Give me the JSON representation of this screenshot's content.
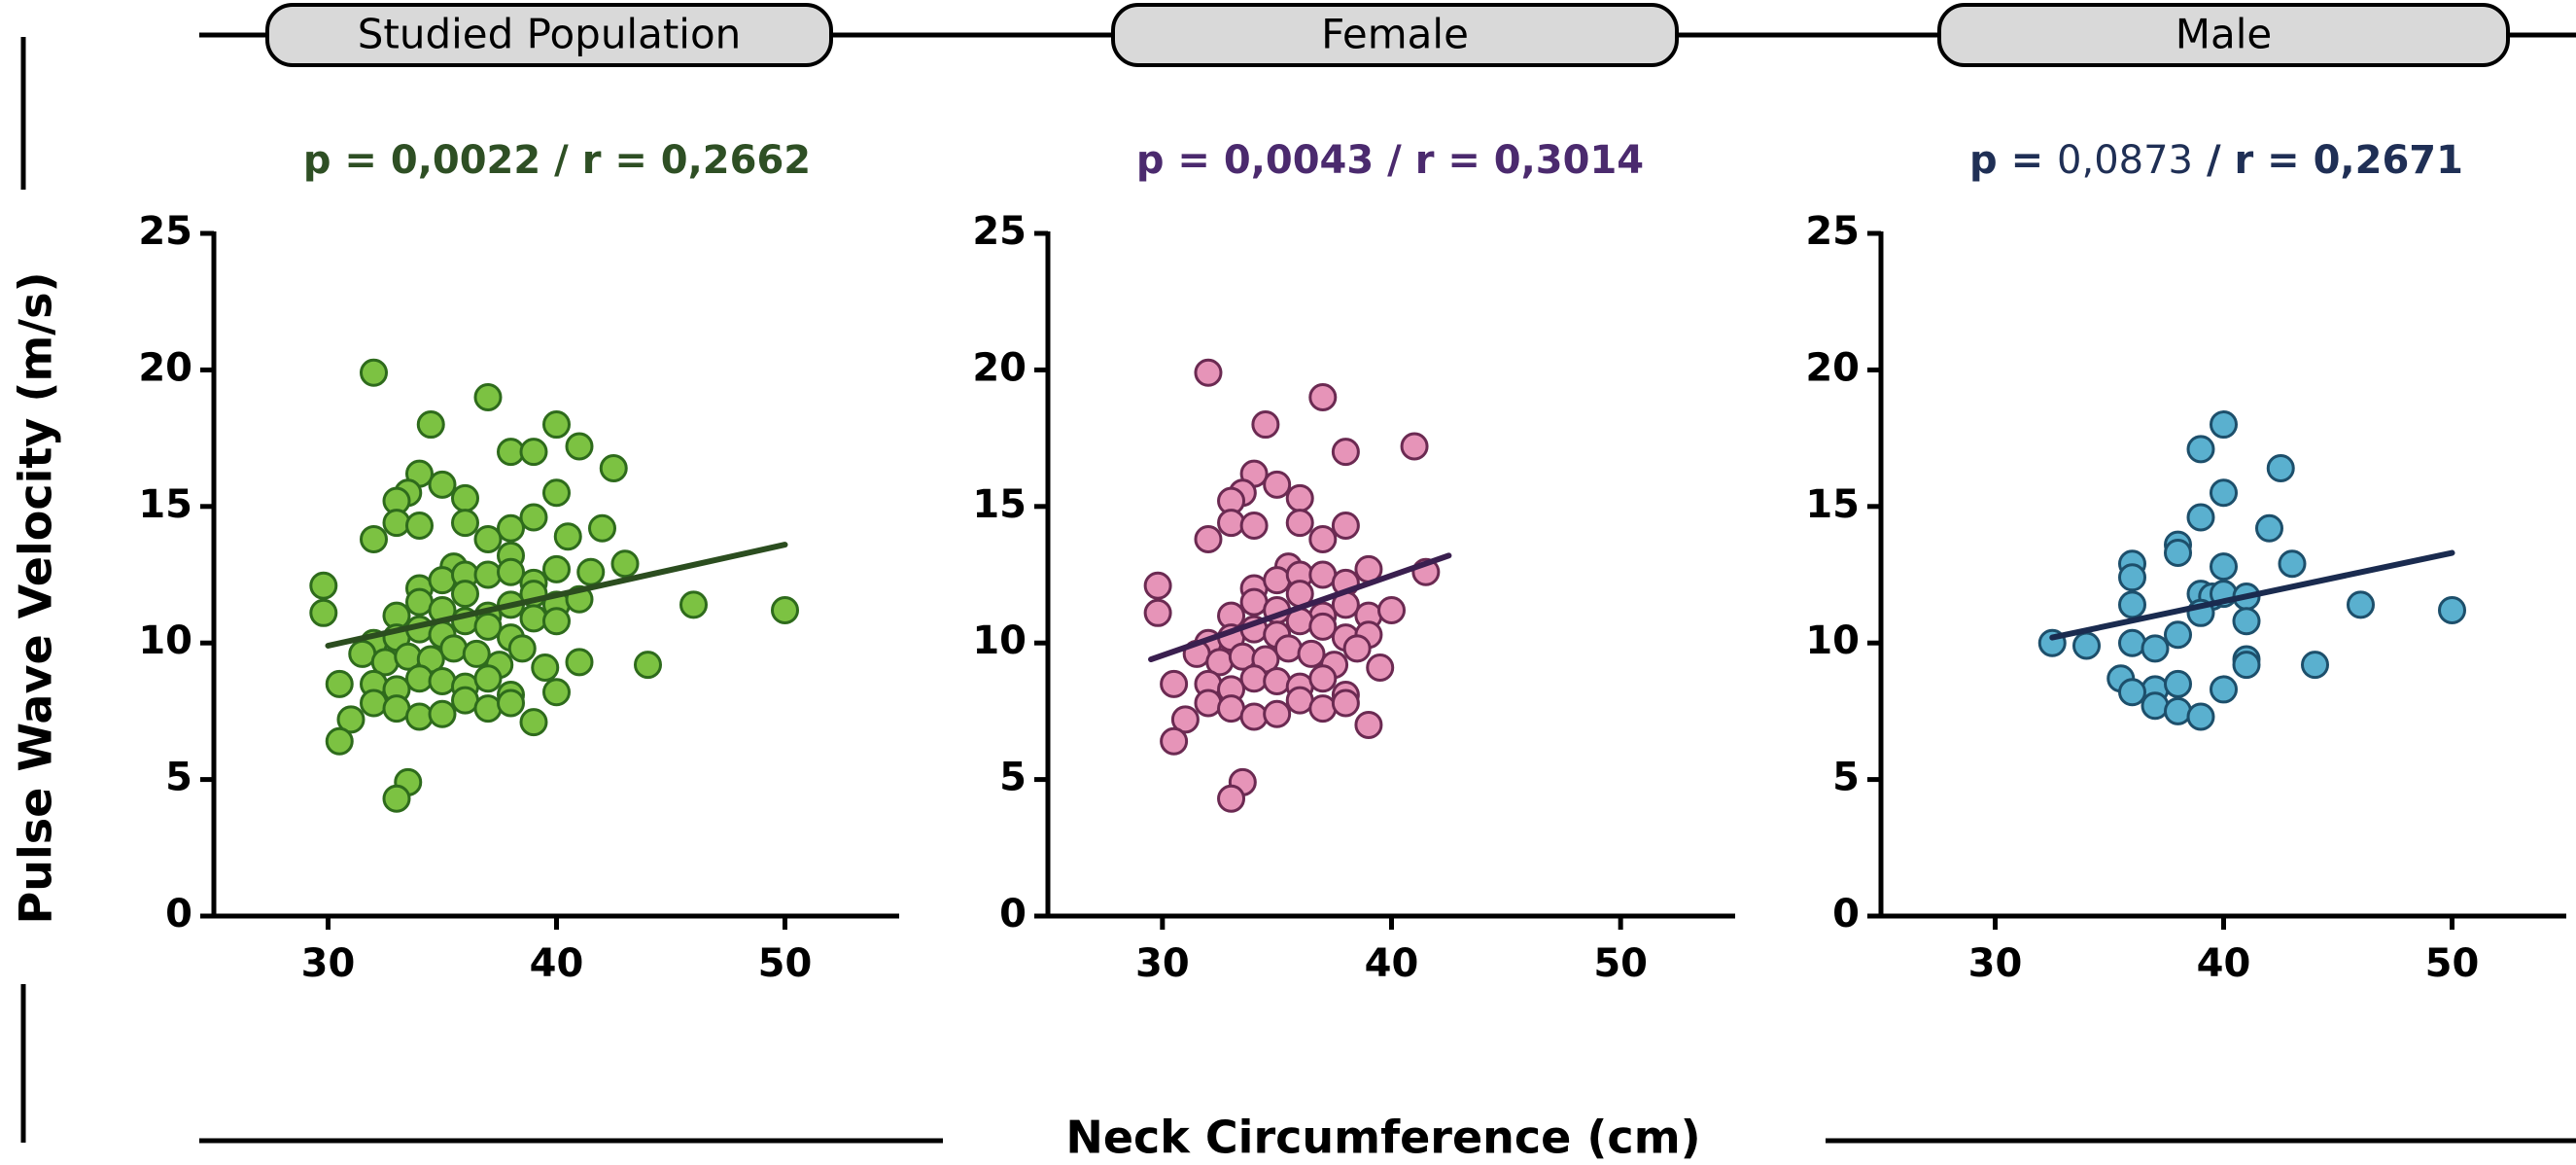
{
  "figure": {
    "ylabel": "Pulse Wave Velocity (m/s)",
    "xlabel": "Neck Circumference (cm)"
  },
  "chart_data": [
    {
      "type": "scatter",
      "title": "Studied Population",
      "stats": {
        "p_label": "p = ",
        "p_value": "0,0022",
        "p_bold": true,
        "separator": " / ",
        "r_label": "r = ",
        "r_value": "0,2662"
      },
      "colors": {
        "point_fill": "#7cc242",
        "point_stroke": "#2e6b1c",
        "line": "#2b4d1f",
        "stat_text": "#2e4f24"
      },
      "xlim": [
        25,
        55
      ],
      "ylim": [
        0,
        25
      ],
      "x_ticks": [
        30,
        40,
        50
      ],
      "y_ticks": [
        0,
        5,
        10,
        15,
        20,
        25
      ],
      "grid": false,
      "trend_line": {
        "x": [
          30,
          50
        ],
        "y": [
          9.9,
          13.6
        ]
      },
      "points": [
        [
          32,
          19.9
        ],
        [
          37,
          19.0
        ],
        [
          34.5,
          18.0
        ],
        [
          40,
          18.0
        ],
        [
          41,
          17.2
        ],
        [
          38,
          17.0
        ],
        [
          39,
          17.0
        ],
        [
          42.5,
          16.4
        ],
        [
          34,
          16.2
        ],
        [
          33.5,
          15.5
        ],
        [
          35,
          15.8
        ],
        [
          36,
          15.3
        ],
        [
          33,
          15.2
        ],
        [
          40,
          15.5
        ],
        [
          33,
          14.4
        ],
        [
          34,
          14.3
        ],
        [
          36,
          14.4
        ],
        [
          38,
          14.2
        ],
        [
          39,
          14.6
        ],
        [
          42,
          14.2
        ],
        [
          32,
          13.8
        ],
        [
          37,
          13.8
        ],
        [
          40.5,
          13.9
        ],
        [
          38,
          13.2
        ],
        [
          35.5,
          12.8
        ],
        [
          43,
          12.9
        ],
        [
          29.8,
          12.1
        ],
        [
          34,
          12.0
        ],
        [
          35,
          12.3
        ],
        [
          36,
          12.5
        ],
        [
          37,
          12.5
        ],
        [
          38,
          12.6
        ],
        [
          39,
          12.2
        ],
        [
          40,
          12.7
        ],
        [
          41.5,
          12.6
        ],
        [
          33,
          11.0
        ],
        [
          34,
          11.5
        ],
        [
          35,
          11.2
        ],
        [
          36,
          11.8
        ],
        [
          37,
          11.0
        ],
        [
          38,
          11.4
        ],
        [
          39,
          11.8
        ],
        [
          40,
          11.4
        ],
        [
          41,
          11.6
        ],
        [
          46,
          11.4
        ],
        [
          50,
          11.2
        ],
        [
          29.8,
          11.1
        ],
        [
          32,
          10.0
        ],
        [
          33,
          10.2
        ],
        [
          34,
          10.5
        ],
        [
          35,
          10.3
        ],
        [
          36,
          10.8
        ],
        [
          37,
          10.6
        ],
        [
          38,
          10.2
        ],
        [
          39,
          10.9
        ],
        [
          40,
          10.8
        ],
        [
          31.5,
          9.6
        ],
        [
          32.5,
          9.3
        ],
        [
          33.5,
          9.5
        ],
        [
          34.5,
          9.4
        ],
        [
          35.5,
          9.8
        ],
        [
          36.5,
          9.6
        ],
        [
          37.5,
          9.2
        ],
        [
          38.5,
          9.8
        ],
        [
          39.5,
          9.1
        ],
        [
          41,
          9.3
        ],
        [
          44,
          9.2
        ],
        [
          30.5,
          8.5
        ],
        [
          32,
          8.5
        ],
        [
          33,
          8.3
        ],
        [
          34,
          8.7
        ],
        [
          35,
          8.6
        ],
        [
          36,
          8.4
        ],
        [
          37,
          8.7
        ],
        [
          38,
          8.1
        ],
        [
          40,
          8.2
        ],
        [
          31,
          7.2
        ],
        [
          32,
          7.8
        ],
        [
          33,
          7.6
        ],
        [
          34,
          7.3
        ],
        [
          35,
          7.4
        ],
        [
          36,
          7.9
        ],
        [
          37,
          7.6
        ],
        [
          38,
          7.8
        ],
        [
          39,
          7.1
        ],
        [
          30.5,
          6.4
        ],
        [
          33.5,
          4.9
        ],
        [
          33,
          4.3
        ]
      ]
    },
    {
      "type": "scatter",
      "title": "Female",
      "stats": {
        "p_label": "p = ",
        "p_value": "0,0043",
        "p_bold": true,
        "separator": " / ",
        "r_label": "r = ",
        "r_value": "0,3014"
      },
      "colors": {
        "point_fill": "#e694b8",
        "point_stroke": "#6b2a52",
        "line": "#3a1f4f",
        "stat_text": "#4b2a6e"
      },
      "xlim": [
        25,
        55
      ],
      "ylim": [
        0,
        25
      ],
      "x_ticks": [
        30,
        40,
        50
      ],
      "y_ticks": [
        0,
        5,
        10,
        15,
        20,
        25
      ],
      "grid": false,
      "trend_line": {
        "x": [
          29.5,
          42.5
        ],
        "y": [
          9.4,
          13.2
        ]
      },
      "points": [
        [
          32,
          19.9
        ],
        [
          37,
          19.0
        ],
        [
          34.5,
          18.0
        ],
        [
          41,
          17.2
        ],
        [
          38,
          17.0
        ],
        [
          34,
          16.2
        ],
        [
          33.5,
          15.5
        ],
        [
          35,
          15.8
        ],
        [
          36,
          15.3
        ],
        [
          33,
          15.2
        ],
        [
          33,
          14.4
        ],
        [
          34,
          14.3
        ],
        [
          36,
          14.4
        ],
        [
          38,
          14.3
        ],
        [
          32,
          13.8
        ],
        [
          37,
          13.8
        ],
        [
          35.5,
          12.8
        ],
        [
          39,
          12.7
        ],
        [
          41.5,
          12.6
        ],
        [
          29.8,
          12.1
        ],
        [
          34,
          12.0
        ],
        [
          35,
          12.3
        ],
        [
          36,
          12.5
        ],
        [
          37,
          12.5
        ],
        [
          38,
          12.2
        ],
        [
          29.8,
          11.1
        ],
        [
          33,
          11.0
        ],
        [
          34,
          11.5
        ],
        [
          35,
          11.2
        ],
        [
          36,
          11.8
        ],
        [
          37,
          11.0
        ],
        [
          38,
          11.4
        ],
        [
          39,
          11.0
        ],
        [
          40,
          11.2
        ],
        [
          32,
          10.0
        ],
        [
          33,
          10.2
        ],
        [
          34,
          10.5
        ],
        [
          35,
          10.3
        ],
        [
          36,
          10.8
        ],
        [
          37,
          10.6
        ],
        [
          38,
          10.2
        ],
        [
          39,
          10.3
        ],
        [
          31.5,
          9.6
        ],
        [
          32.5,
          9.3
        ],
        [
          33.5,
          9.5
        ],
        [
          34.5,
          9.4
        ],
        [
          35.5,
          9.8
        ],
        [
          36.5,
          9.6
        ],
        [
          37.5,
          9.2
        ],
        [
          38.5,
          9.8
        ],
        [
          39.5,
          9.1
        ],
        [
          30.5,
          8.5
        ],
        [
          32,
          8.5
        ],
        [
          33,
          8.3
        ],
        [
          34,
          8.7
        ],
        [
          35,
          8.6
        ],
        [
          36,
          8.4
        ],
        [
          37,
          8.7
        ],
        [
          38,
          8.1
        ],
        [
          31,
          7.2
        ],
        [
          32,
          7.8
        ],
        [
          33,
          7.6
        ],
        [
          34,
          7.3
        ],
        [
          35,
          7.4
        ],
        [
          36,
          7.9
        ],
        [
          37,
          7.6
        ],
        [
          38,
          7.8
        ],
        [
          39,
          7.0
        ],
        [
          30.5,
          6.4
        ],
        [
          33.5,
          4.9
        ],
        [
          33,
          4.3
        ]
      ]
    },
    {
      "type": "scatter",
      "title": "Male",
      "stats": {
        "p_label": "p = ",
        "p_value": "0,0873",
        "p_bold": false,
        "separator": " / ",
        "r_label": "r = ",
        "r_value": "0,2671"
      },
      "colors": {
        "point_fill": "#5ab0cf",
        "point_stroke": "#1d4f6b",
        "line": "#1a2b4f",
        "stat_text": "#1f2f55"
      },
      "xlim": [
        25,
        55
      ],
      "ylim": [
        0,
        25
      ],
      "x_ticks": [
        30,
        40,
        50
      ],
      "y_ticks": [
        0,
        5,
        10,
        15,
        20,
        25
      ],
      "grid": false,
      "trend_line": {
        "x": [
          32.5,
          50
        ],
        "y": [
          10.2,
          13.3
        ]
      },
      "points": [
        [
          40,
          18.0
        ],
        [
          39,
          17.1
        ],
        [
          42.5,
          16.4
        ],
        [
          40,
          15.5
        ],
        [
          39,
          14.6
        ],
        [
          42,
          14.2
        ],
        [
          38,
          13.6
        ],
        [
          38,
          13.3
        ],
        [
          36,
          12.9
        ],
        [
          40,
          12.8
        ],
        [
          43,
          12.9
        ],
        [
          36,
          12.4
        ],
        [
          39,
          11.8
        ],
        [
          39.5,
          11.7
        ],
        [
          40,
          11.8
        ],
        [
          41,
          11.7
        ],
        [
          36,
          11.4
        ],
        [
          46,
          11.4
        ],
        [
          50,
          11.2
        ],
        [
          39,
          11.1
        ],
        [
          41,
          10.8
        ],
        [
          36,
          10.0
        ],
        [
          38,
          10.3
        ],
        [
          32.5,
          10.0
        ],
        [
          34,
          9.9
        ],
        [
          37,
          9.8
        ],
        [
          41,
          9.4
        ],
        [
          41,
          9.2
        ],
        [
          44,
          9.2
        ],
        [
          35.5,
          8.7
        ],
        [
          37,
          8.3
        ],
        [
          38,
          8.5
        ],
        [
          40,
          8.3
        ],
        [
          36,
          8.2
        ],
        [
          37,
          7.7
        ],
        [
          38,
          7.5
        ],
        [
          39,
          7.3
        ]
      ]
    }
  ]
}
